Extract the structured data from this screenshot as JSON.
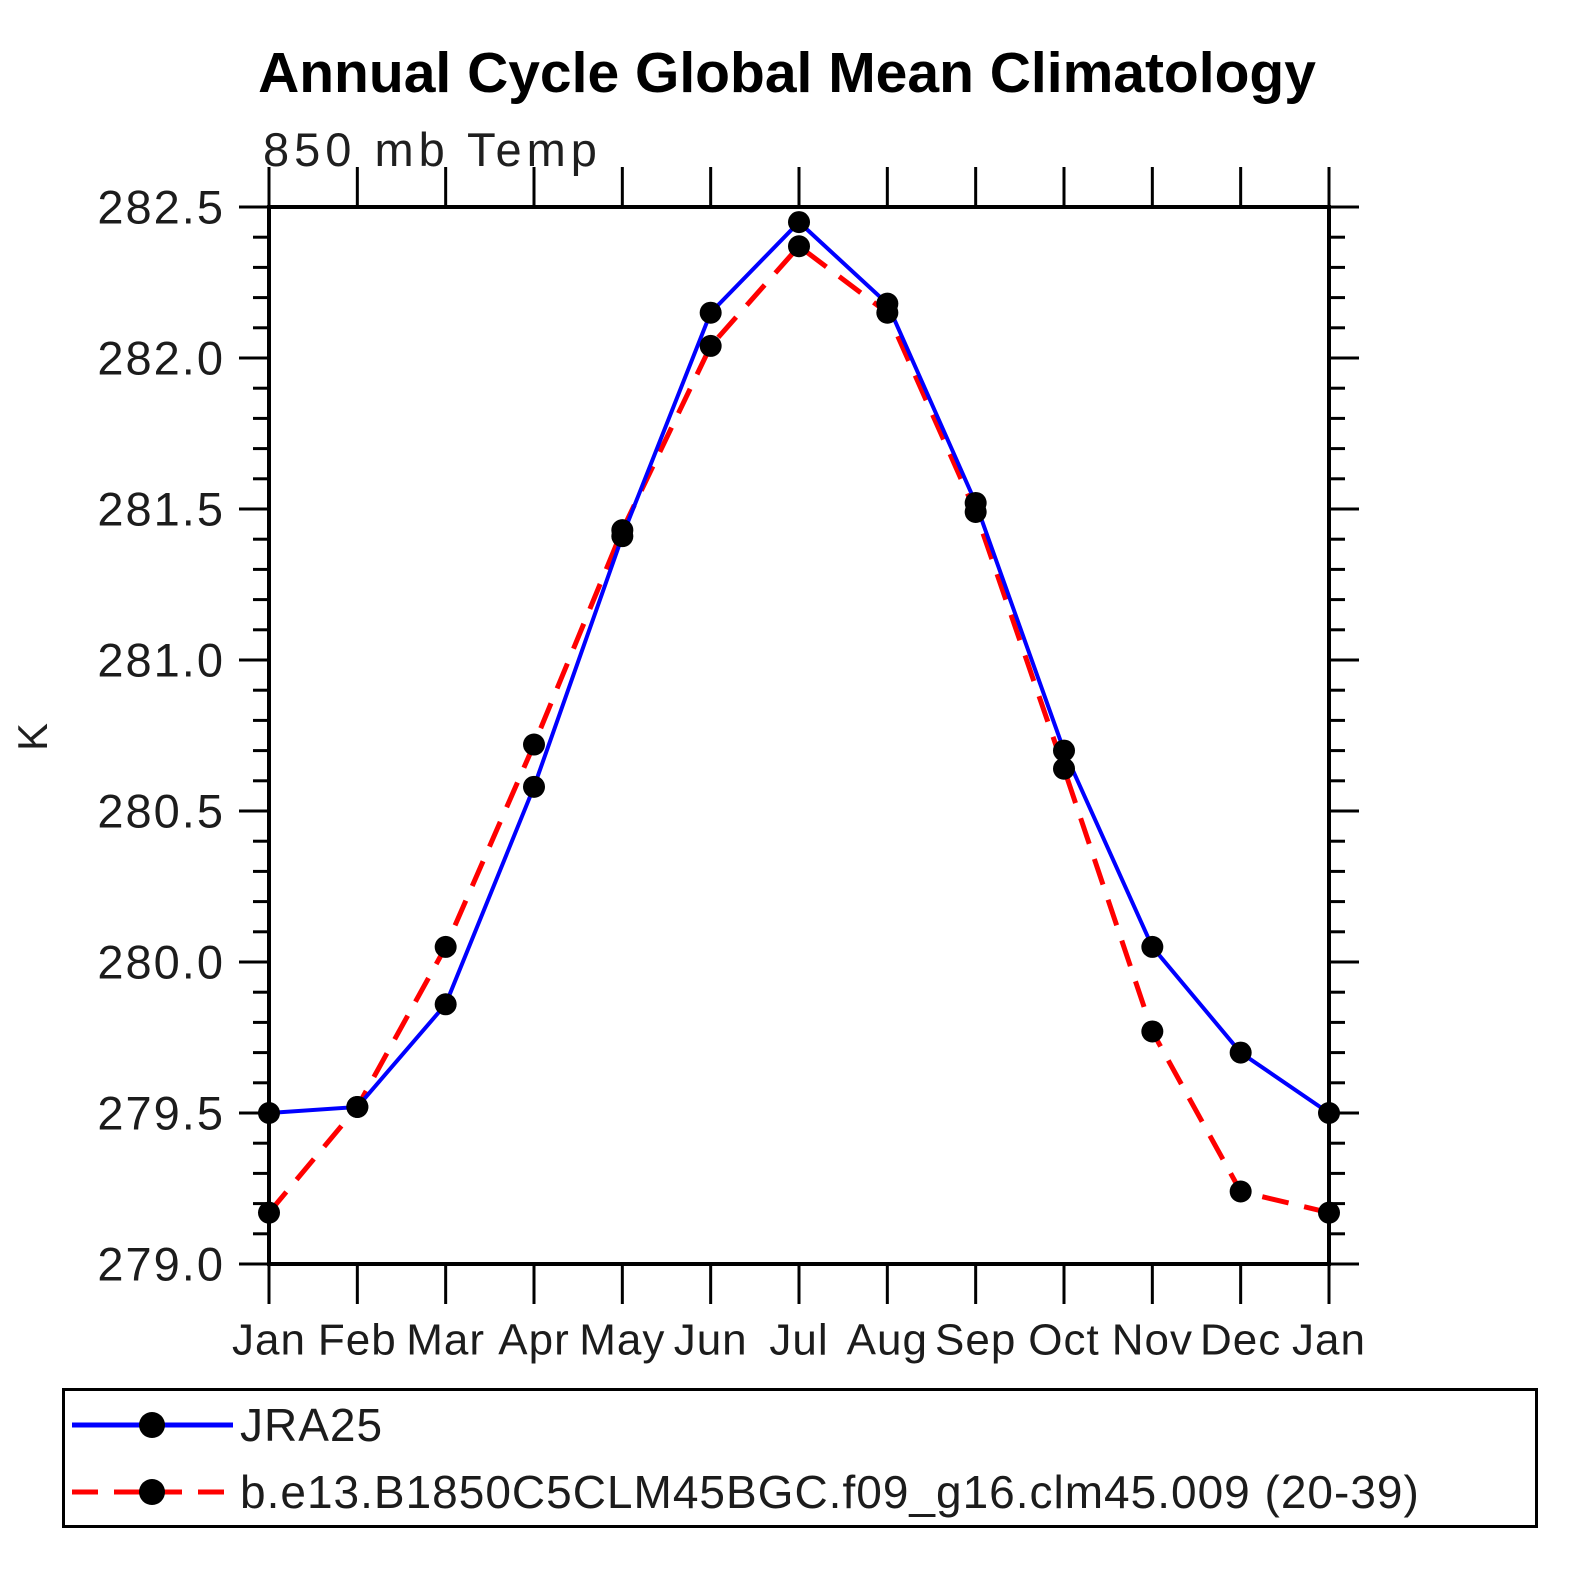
{
  "title": "Annual Cycle Global Mean Climatology",
  "subtitle": "850 mb Temp",
  "ylabel": "K",
  "chart_data": {
    "type": "line",
    "categories": [
      "Jan",
      "Feb",
      "Mar",
      "Apr",
      "May",
      "Jun",
      "Jul",
      "Aug",
      "Sep",
      "Oct",
      "Nov",
      "Dec",
      "Jan"
    ],
    "series": [
      {
        "name": "JRA25",
        "line_color": "#0000ff",
        "line_style": "solid",
        "line_width": 4,
        "marker": "filled-circle",
        "marker_color": "#000000",
        "values": [
          279.5,
          279.52,
          279.86,
          280.58,
          281.41,
          282.15,
          282.45,
          282.18,
          281.52,
          280.7,
          280.05,
          279.7,
          279.5
        ]
      },
      {
        "name": "b.e13.B1850C5CLM45BGC.f09_g16.clm45.009 (20-39)",
        "line_color": "#ff0000",
        "line_style": "dashed",
        "line_width": 5,
        "marker": "filled-circle",
        "marker_color": "#000000",
        "values": [
          279.17,
          279.52,
          280.05,
          280.72,
          281.43,
          282.04,
          282.37,
          282.15,
          281.49,
          280.64,
          279.77,
          279.24,
          279.17
        ]
      }
    ],
    "ylim": [
      279.0,
      282.5
    ],
    "ytick_major_interval": 0.5,
    "ytick_minor_interval": 0.1,
    "xlabel": "",
    "grid": false,
    "legend_position": "bottom-left-box",
    "axis_color": "#000000"
  }
}
